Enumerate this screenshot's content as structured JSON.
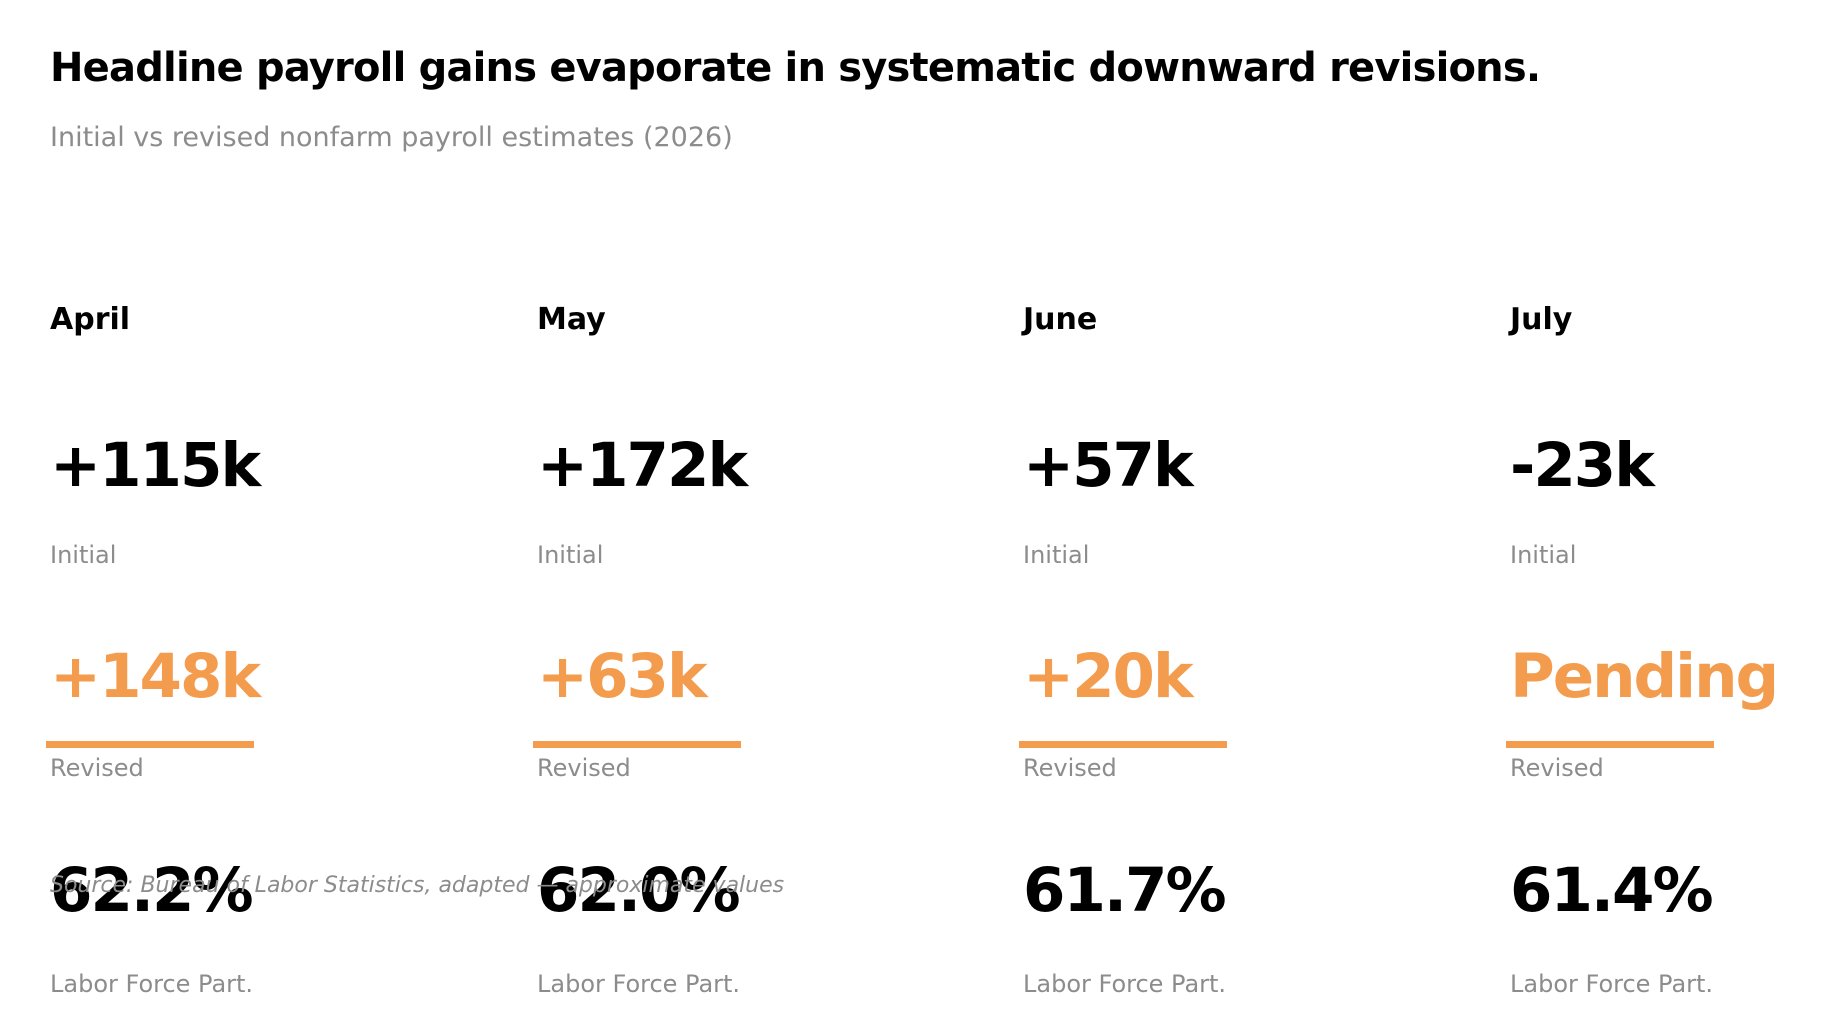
{
  "title": "Headline payroll gains evaporate in systematic downward revisions.",
  "subtitle": "Initial vs revised nonfarm payroll estimates (2026)",
  "source": "Source: Bureau of Labor Statistics, adapted — approximate values",
  "colors": {
    "primary": "#000000",
    "accent": "#f39c4e",
    "muted": "#8c8c8c",
    "background": "#ffffff"
  },
  "chart_data": {
    "type": "table",
    "labels": {
      "initial": "Initial",
      "revised": "Revised",
      "lfp": "Labor Force Part."
    },
    "months": [
      {
        "month": "April",
        "initial": "+115k",
        "revised": "+148k",
        "lfp": "62.2%"
      },
      {
        "month": "May",
        "initial": "+172k",
        "revised": "+63k",
        "lfp": "62.0%"
      },
      {
        "month": "June",
        "initial": "+57k",
        "revised": "+20k",
        "lfp": "61.7%"
      },
      {
        "month": "July",
        "initial": "-23k",
        "revised": "Pending",
        "lfp": "61.4%"
      }
    ]
  }
}
